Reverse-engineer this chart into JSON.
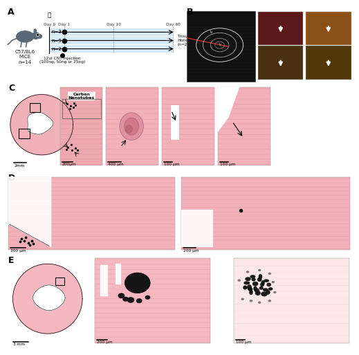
{
  "panel_A_label": "A",
  "panel_B_label": "B",
  "panel_C_label": "C",
  "panel_D_label": "D",
  "panel_E_label": "E",
  "mouse_label": "C57/BL6\nMICE\nn=14",
  "n3_label": "n=3",
  "n9_label": "n=9",
  "n2_label": "n=2",
  "day0": "Day 0",
  "day1": "Day 1",
  "day10": "Day 10",
  "day60": "Day 60",
  "injection_label": "12ul CNT injection\n(100ng, 50ng or 25ng)",
  "harvest_label": "Tissue Harvest\nHistology\n(n=2-3/group)",
  "cnt_label": "Carbon\nNanotubes",
  "scale_2mm": "2mm",
  "scale_200um_C": "200μm",
  "scale_400um": "400 μm",
  "scale_100um_1": "100 μm",
  "scale_100um_2": "100 μm",
  "scale_300um": "300 μm",
  "scale_200um_D": "200 μm",
  "scale_3mm": "3 mm",
  "scale_200um_E": "200 μm",
  "scale_100um_E": "100 μm",
  "bg_color": "#ffffff",
  "light_blue": "#d6eaf8",
  "light_blue2": "#e8f5fc",
  "label_fontsize": 9,
  "micro_pink": "#f2b8be",
  "micro_pink2": "#e8a0a8",
  "micro_pink3": "#f8d0d4",
  "micro_white": "#ffffff",
  "micro_dark": "#c87880",
  "fiber_color": "#d89098"
}
